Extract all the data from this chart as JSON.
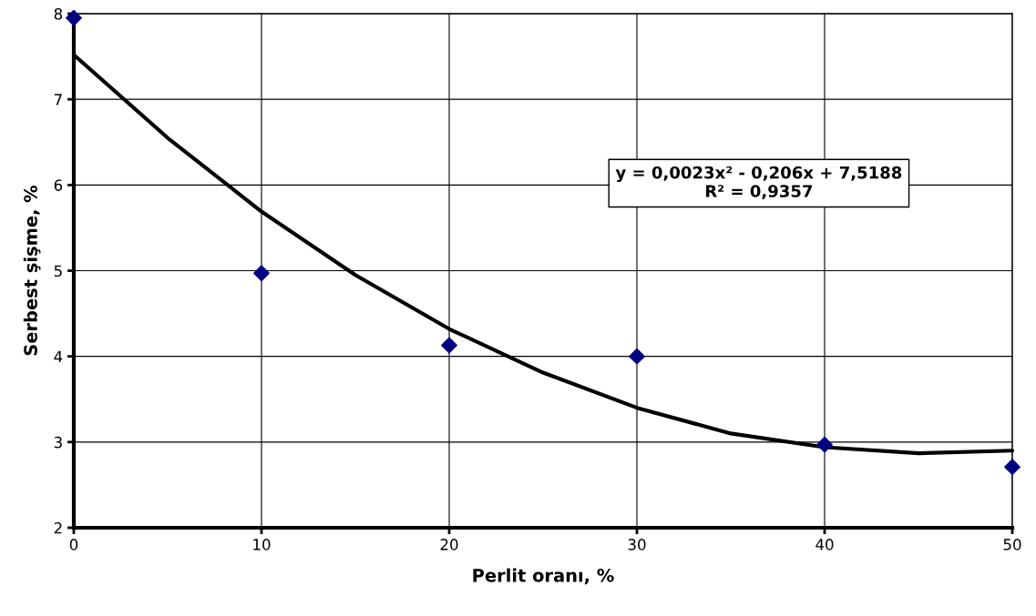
{
  "chart_data": {
    "type": "scatter",
    "xlabel": "Perlit oranı, %",
    "ylabel": "Serbest şişme, %",
    "annotations": [
      "y = 0,0023x² - 0,206x + 7,5188\nR² = 0,9357"
    ],
    "series": [
      {
        "color": "#000080",
        "marker": "diamond",
        "x": [
          0,
          10,
          20,
          30,
          40,
          50
        ],
        "values": [
          7.95,
          4.97,
          4.13,
          4.0,
          2.97,
          2.71
        ]
      },
      {
        "type": "line",
        "color": "#000000",
        "marker": "none",
        "line_style": "solid",
        "x": [
          0,
          5,
          10,
          15,
          20,
          25,
          30,
          35,
          40,
          45,
          50
        ],
        "values": [
          7.52,
          6.55,
          5.69,
          4.95,
          4.32,
          3.81,
          3.4,
          3.1,
          2.94,
          2.87,
          2.9
        ]
      }
    ],
    "xlim": [
      0,
      50
    ],
    "xticks": [
      0,
      10,
      20,
      30,
      40,
      50
    ],
    "ylim": [
      2,
      8
    ],
    "yticks": [
      2,
      3,
      4,
      5,
      6,
      7,
      8
    ],
    "grid": true
  }
}
